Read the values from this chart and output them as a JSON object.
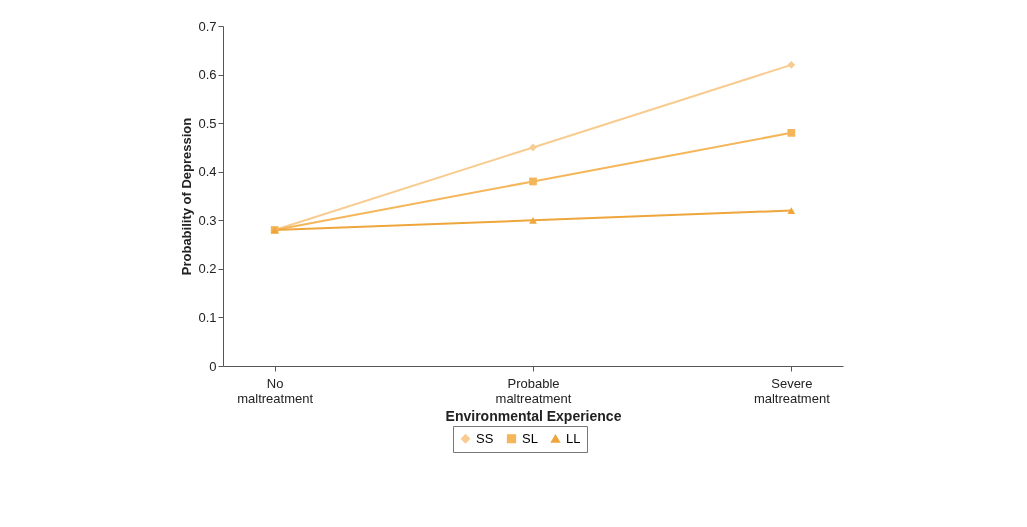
{
  "chart_data": {
    "type": "line",
    "xlabel": "Environmental Experience",
    "ylabel": "Probability of Depression",
    "categories": [
      "No maltreatment",
      "Probable maltreatment",
      "Severe maltreatment"
    ],
    "series": [
      {
        "name": "SS",
        "color": "#f8cc90",
        "marker": "diamond",
        "values": [
          0.28,
          0.45,
          0.62
        ]
      },
      {
        "name": "SL",
        "color": "#f5b65a",
        "marker": "square",
        "values": [
          0.28,
          0.38,
          0.48
        ]
      },
      {
        "name": "LL",
        "color": "#eea63c",
        "marker": "triangle",
        "values": [
          0.28,
          0.3,
          0.32
        ]
      }
    ],
    "ylim": [
      0,
      0.7
    ],
    "yticks": [
      0,
      0.1,
      0.2,
      0.3,
      0.4,
      0.5,
      0.6,
      0.7
    ],
    "grid": false,
    "legend": "bottom",
    "line_style": "solid"
  }
}
